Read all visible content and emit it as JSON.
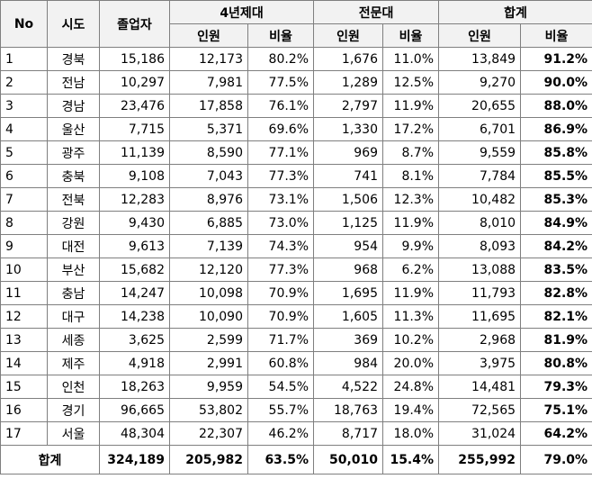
{
  "table": {
    "header": {
      "no": "No",
      "region": "시도",
      "graduates": "졸업자",
      "groups": [
        "4년제대",
        "전문대",
        "합계"
      ],
      "sub": [
        "인원",
        "비율",
        "인원",
        "비율",
        "인원",
        "비율"
      ]
    },
    "rows": [
      [
        "1",
        "경북",
        "15,186",
        "12,173",
        "80.2%",
        "1,676",
        "11.0%",
        "13,849",
        "91.2%"
      ],
      [
        "2",
        "전남",
        "10,297",
        "7,981",
        "77.5%",
        "1,289",
        "12.5%",
        "9,270",
        "90.0%"
      ],
      [
        "3",
        "경남",
        "23,476",
        "17,858",
        "76.1%",
        "2,797",
        "11.9%",
        "20,655",
        "88.0%"
      ],
      [
        "4",
        "울산",
        "7,715",
        "5,371",
        "69.6%",
        "1,330",
        "17.2%",
        "6,701",
        "86.9%"
      ],
      [
        "5",
        "광주",
        "11,139",
        "8,590",
        "77.1%",
        "969",
        "8.7%",
        "9,559",
        "85.8%"
      ],
      [
        "6",
        "충북",
        "9,108",
        "7,043",
        "77.3%",
        "741",
        "8.1%",
        "7,784",
        "85.5%"
      ],
      [
        "7",
        "전북",
        "12,283",
        "8,976",
        "73.1%",
        "1,506",
        "12.3%",
        "10,482",
        "85.3%"
      ],
      [
        "8",
        "강원",
        "9,430",
        "6,885",
        "73.0%",
        "1,125",
        "11.9%",
        "8,010",
        "84.9%"
      ],
      [
        "9",
        "대전",
        "9,613",
        "7,139",
        "74.3%",
        "954",
        "9.9%",
        "8,093",
        "84.2%"
      ],
      [
        "10",
        "부산",
        "15,682",
        "12,120",
        "77.3%",
        "968",
        "6.2%",
        "13,088",
        "83.5%"
      ],
      [
        "11",
        "충남",
        "14,247",
        "10,098",
        "70.9%",
        "1,695",
        "11.9%",
        "11,793",
        "82.8%"
      ],
      [
        "12",
        "대구",
        "14,238",
        "10,090",
        "70.9%",
        "1,605",
        "11.3%",
        "11,695",
        "82.1%"
      ],
      [
        "13",
        "세종",
        "3,625",
        "2,599",
        "71.7%",
        "369",
        "10.2%",
        "2,968",
        "81.9%"
      ],
      [
        "14",
        "제주",
        "4,918",
        "2,991",
        "60.8%",
        "984",
        "20.0%",
        "3,975",
        "80.8%"
      ],
      [
        "15",
        "인천",
        "18,263",
        "9,959",
        "54.5%",
        "4,522",
        "24.8%",
        "14,481",
        "79.3%"
      ],
      [
        "16",
        "경기",
        "96,665",
        "53,802",
        "55.7%",
        "18,763",
        "19.4%",
        "72,565",
        "75.1%"
      ],
      [
        "17",
        "서울",
        "48,304",
        "22,307",
        "46.2%",
        "8,717",
        "18.0%",
        "31,024",
        "64.2%"
      ]
    ],
    "total": [
      "합계",
      "324,189",
      "205,982",
      "63.5%",
      "50,010",
      "15.4%",
      "255,992",
      "79.0%"
    ]
  }
}
